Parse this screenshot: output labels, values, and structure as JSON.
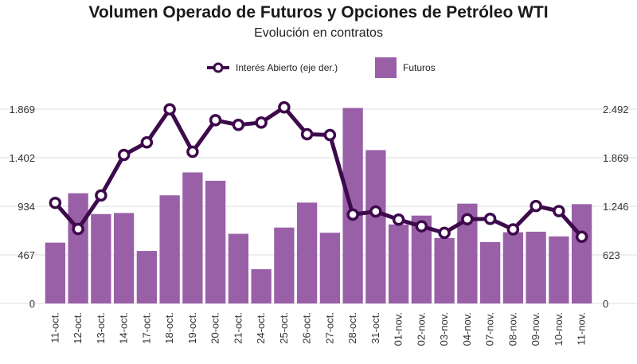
{
  "chart_data": {
    "type": "bar",
    "title": "Volumen Operado de Futuros y Opciones de Petróleo WTI",
    "subtitle": "Evolución en contratos",
    "categories": [
      "11-oct.",
      "12-oct.",
      "13-oct.",
      "14-oct.",
      "17-oct.",
      "18-oct.",
      "19-oct.",
      "20-oct.",
      "21-oct.",
      "24-oct.",
      "25-oct.",
      "26-oct.",
      "27-oct.",
      "28-oct.",
      "31-oct.",
      "01-nov.",
      "02-nov.",
      "03-nov.",
      "04-nov.",
      "07-nov.",
      "08-nov.",
      "09-nov.",
      "10-nov.",
      "11-nov."
    ],
    "series": [
      {
        "name": "Futuros",
        "kind": "bar",
        "axis": "left",
        "color": "#9960a8",
        "values": [
          585,
          1060,
          860,
          870,
          505,
          1040,
          1260,
          1180,
          670,
          330,
          730,
          970,
          680,
          1880,
          1475,
          760,
          845,
          630,
          960,
          590,
          685,
          690,
          645,
          955
        ]
      },
      {
        "name": "Interés Abierto (eje der.)",
        "kind": "line",
        "axis": "right",
        "color": "#3d0a4c",
        "values": [
          1290,
          955,
          1385,
          1905,
          2065,
          2490,
          1945,
          2350,
          2290,
          2320,
          2515,
          2170,
          2160,
          1140,
          1180,
          1075,
          990,
          905,
          1080,
          1085,
          950,
          1250,
          1185,
          855
        ]
      }
    ],
    "y_left": {
      "ticks": [
        0,
        467,
        934,
        1402,
        1869
      ],
      "tick_labels": [
        "0",
        "467",
        "934",
        "1.402",
        "1.869"
      ],
      "range": [
        0,
        1869
      ]
    },
    "y_right": {
      "ticks": [
        0,
        623,
        1246,
        1869,
        2492
      ],
      "tick_labels": [
        "0",
        "623",
        "1.246",
        "1.869",
        "2.492"
      ],
      "range": [
        0,
        2492
      ]
    },
    "grid": true,
    "legend_position": "top-center"
  }
}
